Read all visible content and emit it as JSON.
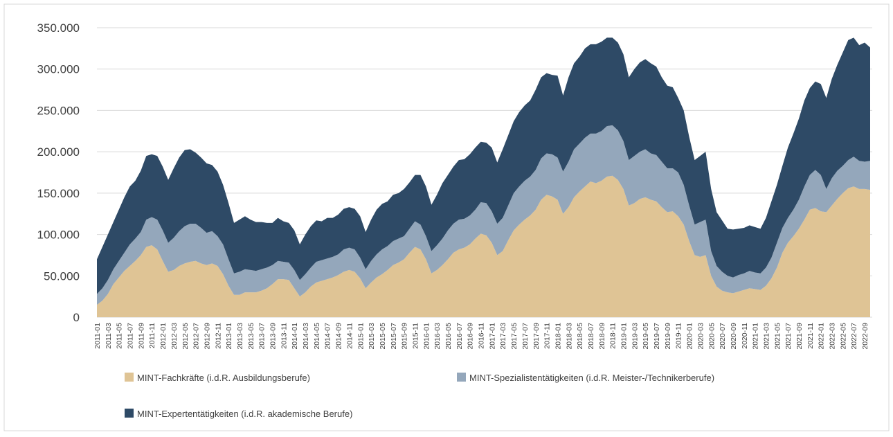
{
  "chart_data": {
    "type": "stacked_area",
    "categories": [
      "2011-01",
      null,
      "2011-03",
      null,
      "2011-05",
      null,
      "2011-07",
      null,
      "2011-09",
      null,
      "2011-11",
      null,
      "2012-01",
      null,
      "2012-03",
      null,
      "2012-05",
      null,
      "2012-07",
      null,
      "2012-09",
      null,
      "2012-11",
      null,
      "2013-01",
      null,
      "2013-03",
      null,
      "2013-05",
      null,
      "2013-07",
      null,
      "2013-09",
      null,
      "2013-11",
      null,
      "2014-01",
      null,
      "2014-03",
      null,
      "2014-05",
      null,
      "2014-07",
      null,
      "2014-09",
      null,
      "2014-11",
      null,
      "2015-01",
      null,
      "2015-03",
      null,
      "2015-05",
      null,
      "2015-07",
      null,
      "2015-09",
      null,
      "2015-11",
      null,
      "2016-01",
      null,
      "2016-03",
      null,
      "2016-05",
      null,
      "2016-07",
      null,
      "2016-09",
      null,
      "2016-11",
      null,
      "2017-01",
      null,
      "2017-03",
      null,
      "2017-05",
      null,
      "2017-07",
      null,
      "2017-09",
      null,
      "2017-11",
      null,
      "2018-01",
      null,
      "2018-03",
      null,
      "2018-05",
      null,
      "2018-07",
      null,
      "2018-09",
      null,
      "2018-11",
      null,
      "2019-01",
      null,
      "2019-03",
      null,
      "2019-05",
      null,
      "2019-07",
      null,
      "2019-09",
      null,
      "2019-11",
      null,
      "2020-01",
      null,
      "2020-03",
      null,
      "2020-05",
      null,
      "2020-07",
      null,
      "2020-09",
      null,
      "2020-11",
      null,
      "2021-01",
      null,
      "2021-03",
      null,
      "2021-05",
      null,
      "2021-07",
      null,
      "2021-09",
      null,
      "2021-11",
      null,
      "2022-01",
      null,
      "2022-03",
      null,
      "2022-05",
      null,
      "2022-07",
      null,
      "2022-09",
      null
    ],
    "series": [
      {
        "name": "MINT-Fachkräfte (i.d.R. Ausbildungsberufe)",
        "color": "#dfc495",
        "values": [
          15000,
          20000,
          28000,
          40000,
          48000,
          56000,
          62000,
          68000,
          75000,
          85000,
          87000,
          82000,
          68000,
          55000,
          57000,
          62000,
          65000,
          67000,
          68000,
          65000,
          63000,
          65000,
          62000,
          52000,
          38000,
          27000,
          27000,
          30000,
          30000,
          30000,
          32000,
          35000,
          40000,
          46000,
          46000,
          45000,
          35000,
          25000,
          30000,
          37000,
          42000,
          44000,
          46000,
          48000,
          51000,
          55000,
          57000,
          55000,
          47000,
          35000,
          42000,
          48000,
          52000,
          57000,
          63000,
          66000,
          70000,
          78000,
          85000,
          82000,
          70000,
          53000,
          57000,
          63000,
          70000,
          78000,
          82000,
          84000,
          88000,
          95000,
          101000,
          99000,
          90000,
          75000,
          80000,
          93000,
          105000,
          112000,
          118000,
          123000,
          130000,
          142000,
          148000,
          146000,
          142000,
          125000,
          133000,
          145000,
          152000,
          158000,
          164000,
          162000,
          165000,
          170000,
          171000,
          166000,
          155000,
          135000,
          138000,
          143000,
          145000,
          142000,
          140000,
          133000,
          127000,
          128000,
          122000,
          112000,
          92000,
          75000,
          73000,
          75000,
          50000,
          37000,
          32000,
          30000,
          29000,
          31000,
          33000,
          35000,
          34000,
          33000,
          38000,
          47000,
          60000,
          78000,
          90000,
          98000,
          107000,
          118000,
          130000,
          132000,
          128000,
          127000,
          135000,
          143000,
          150000,
          156000,
          158000,
          155000,
          155000,
          154000
        ]
      },
      {
        "name": "MINT-Spezialistentätigkeiten (i.d.R. Meister-/Technikerberufe)",
        "color": "#94a7bb",
        "values": [
          13000,
          15000,
          17000,
          18000,
          20000,
          22000,
          26000,
          27000,
          28000,
          33000,
          34000,
          36000,
          37000,
          35000,
          39000,
          42000,
          45000,
          46000,
          45000,
          43000,
          39000,
          39000,
          36000,
          36000,
          32000,
          26000,
          28000,
          28000,
          27000,
          26000,
          26000,
          25000,
          23000,
          22000,
          21000,
          21000,
          22000,
          20000,
          22000,
          23000,
          25000,
          25000,
          25000,
          25000,
          25000,
          27000,
          27000,
          27000,
          25000,
          23000,
          26000,
          28000,
          30000,
          29000,
          29000,
          29000,
          28000,
          29000,
          31000,
          30000,
          28000,
          27000,
          30000,
          32000,
          35000,
          35000,
          36000,
          35000,
          35000,
          35000,
          38000,
          39000,
          38000,
          38000,
          40000,
          42000,
          45000,
          46000,
          47000,
          47000,
          48000,
          50000,
          50000,
          51000,
          51000,
          51000,
          55000,
          58000,
          58000,
          59000,
          58000,
          60000,
          60000,
          61000,
          61000,
          60000,
          58000,
          55000,
          57000,
          57000,
          58000,
          56000,
          56000,
          55000,
          53000,
          52000,
          53000,
          48000,
          43000,
          37000,
          42000,
          43000,
          30000,
          25000,
          23000,
          20000,
          19000,
          20000,
          20000,
          21000,
          20000,
          20000,
          22000,
          25000,
          30000,
          30000,
          30000,
          32000,
          35000,
          40000,
          42000,
          46000,
          44000,
          28000,
          33000,
          34000,
          33000,
          34000,
          36000,
          34000,
          33000,
          35000
        ]
      },
      {
        "name": "MINT-Expertentätigkeiten (i.d.R. akademische Berufe)",
        "color": "#2e4a66",
        "values": [
          42000,
          50000,
          55000,
          57000,
          62000,
          67000,
          70000,
          70000,
          74000,
          77000,
          76000,
          77000,
          77000,
          76000,
          84000,
          89000,
          92000,
          90000,
          86000,
          85000,
          84000,
          80000,
          78000,
          72000,
          68000,
          61000,
          63000,
          64000,
          61000,
          59000,
          57000,
          54000,
          51000,
          52000,
          49000,
          48000,
          48000,
          43000,
          48000,
          50000,
          50000,
          47000,
          49000,
          47000,
          48000,
          49000,
          49000,
          49000,
          50000,
          45000,
          50000,
          54000,
          55000,
          54000,
          56000,
          55000,
          57000,
          56000,
          56000,
          60000,
          60000,
          56000,
          61000,
          67000,
          67000,
          69000,
          72000,
          72000,
          74000,
          75000,
          73000,
          73000,
          77000,
          74000,
          83000,
          85000,
          87000,
          90000,
          91000,
          92000,
          97000,
          98000,
          97000,
          96000,
          99000,
          92000,
          102000,
          104000,
          105000,
          108000,
          108000,
          108000,
          108000,
          107000,
          106000,
          106000,
          105000,
          100000,
          105000,
          108000,
          109000,
          109000,
          107000,
          102000,
          100000,
          98000,
          90000,
          90000,
          83000,
          78000,
          80000,
          82000,
          75000,
          65000,
          62000,
          57000,
          58000,
          56000,
          55000,
          55000,
          55000,
          54000,
          60000,
          68000,
          70000,
          75000,
          85000,
          92000,
          98000,
          104000,
          105000,
          107000,
          110000,
          110000,
          120000,
          128000,
          137000,
          145000,
          144000,
          140000,
          144000,
          137000
        ]
      }
    ],
    "ylim": [
      0,
      350000
    ],
    "yticks": [
      0,
      {
        "value": 50000,
        "label": "50.000"
      },
      {
        "value": 100000,
        "label": "100.000"
      },
      {
        "value": 150000,
        "label": "150.000"
      },
      {
        "value": 200000,
        "label": "200.000"
      },
      {
        "value": 250000,
        "label": "250.000"
      },
      {
        "value": 300000,
        "label": "300.000"
      },
      {
        "value": 350000,
        "label": "350.000"
      }
    ],
    "grid": true
  }
}
